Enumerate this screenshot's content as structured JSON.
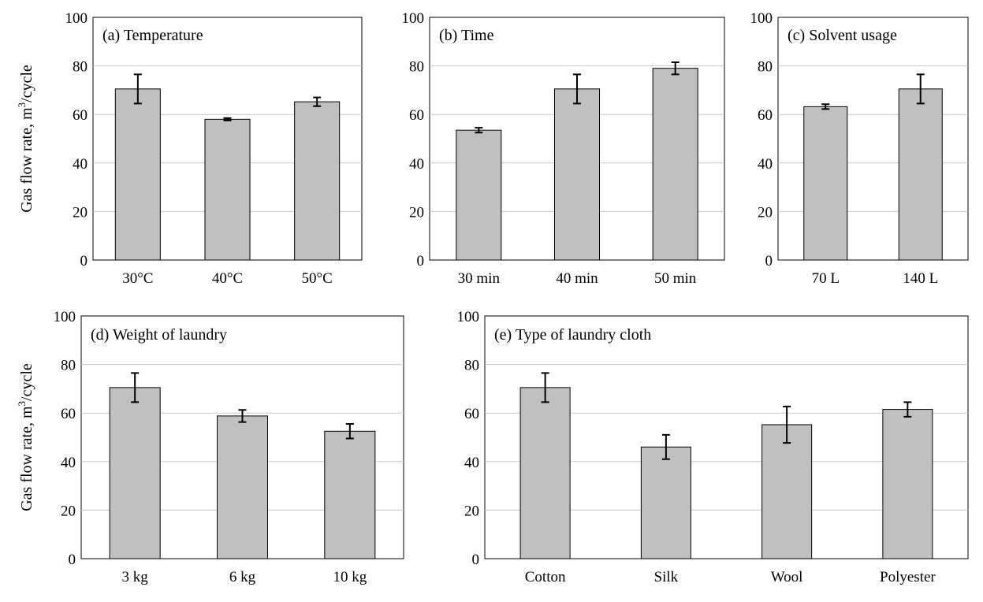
{
  "chart_data": [
    {
      "type": "bar",
      "title": "(a) Temperature",
      "ylabel_prefix": "Gas flow rate, m",
      "ylabel_sup": "3",
      "ylabel_suffix": "/cycle",
      "ylim": [
        0,
        100
      ],
      "yticks": [
        0,
        20,
        40,
        60,
        80,
        100
      ],
      "grid": true,
      "categories": [
        "30°C",
        "40°C",
        "50°C"
      ],
      "values": [
        70.5,
        58,
        65.2
      ],
      "errors": [
        6,
        0.5,
        1.8
      ]
    },
    {
      "type": "bar",
      "title": "(b) Time",
      "ylim": [
        0,
        100
      ],
      "yticks": [
        0,
        20,
        40,
        60,
        80,
        100
      ],
      "grid": true,
      "categories": [
        "30 min",
        "40 min",
        "50 min"
      ],
      "values": [
        53.5,
        70.5,
        79
      ],
      "errors": [
        1,
        6,
        2.5
      ]
    },
    {
      "type": "bar",
      "title": "(c) Solvent usage",
      "ylim": [
        0,
        100
      ],
      "yticks": [
        0,
        20,
        40,
        60,
        80,
        100
      ],
      "grid": true,
      "categories": [
        "70 L",
        "140 L"
      ],
      "values": [
        63.2,
        70.5
      ],
      "errors": [
        1,
        6
      ]
    },
    {
      "type": "bar",
      "title": "(d) Weight of laundry",
      "ylabel_prefix": "Gas flow rate, m",
      "ylabel_sup": "3",
      "ylabel_suffix": "/cycle",
      "ylim": [
        0,
        100
      ],
      "yticks": [
        0,
        20,
        40,
        60,
        80,
        100
      ],
      "grid": true,
      "categories": [
        "3 kg",
        "6 kg",
        "10 kg"
      ],
      "values": [
        70.5,
        58.8,
        52.5
      ],
      "errors": [
        6,
        2.5,
        3
      ]
    },
    {
      "type": "bar",
      "title": "(e) Type of laundry cloth",
      "ylim": [
        0,
        100
      ],
      "yticks": [
        0,
        20,
        40,
        60,
        80,
        100
      ],
      "grid": true,
      "categories": [
        "Cotton",
        "Silk",
        "Wool",
        "Polyester"
      ],
      "values": [
        70.5,
        46,
        55.2,
        61.5
      ],
      "errors": [
        6,
        5,
        7.5,
        3
      ]
    }
  ],
  "style": {
    "bar_color": "#c0c0c0",
    "grid_color": "#c8c8c8",
    "axis_color": "#000000"
  }
}
